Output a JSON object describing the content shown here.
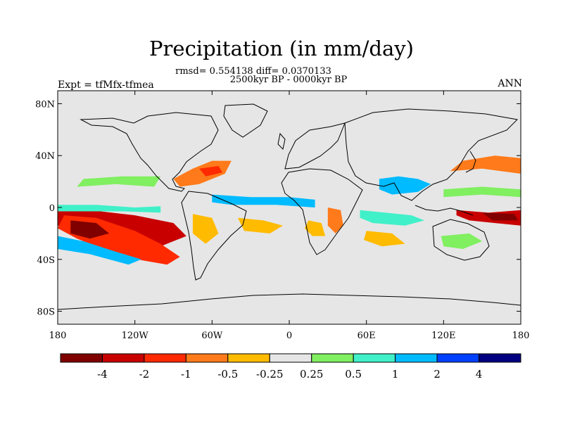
{
  "chart_data": {
    "type": "heatmap",
    "title": "Precipitation (in mm/day)",
    "subtitle_stats": "rmsd= 0.554138 diff= 0.0370133",
    "subtitle_period": "2500kyr BP - 0000kyr BP",
    "left_label": "Expt = tfMfx-tfmea",
    "right_label": "ANN",
    "xlabel": "",
    "ylabel": "",
    "x_range": [
      -180,
      180
    ],
    "y_range": [
      -90,
      90
    ],
    "x_ticks": [
      {
        "value": -180,
        "label": "180"
      },
      {
        "value": -120,
        "label": "120W"
      },
      {
        "value": -60,
        "label": "60W"
      },
      {
        "value": 0,
        "label": "0"
      },
      {
        "value": 60,
        "label": "60E"
      },
      {
        "value": 120,
        "label": "120E"
      },
      {
        "value": 180,
        "label": "180"
      }
    ],
    "y_ticks": [
      {
        "value": 80,
        "label": "80N"
      },
      {
        "value": 40,
        "label": "40N"
      },
      {
        "value": 0,
        "label": "0"
      },
      {
        "value": -40,
        "label": "40S"
      },
      {
        "value": -80,
        "label": "80S"
      }
    ],
    "colorbar": {
      "colors": [
        "#800000",
        "#c80000",
        "#ff2a00",
        "#ff7a1a",
        "#ffbb00",
        "#e6e6e6",
        "#80ef60",
        "#40f0c8",
        "#00bbff",
        "#0040ff",
        "#000080"
      ],
      "labels": [
        "-4",
        "-2",
        "-1",
        "-0.5",
        "-0.25",
        "0.25",
        "0.5",
        "1",
        "2",
        "4"
      ]
    },
    "background_color": "#e6e6e6",
    "anomaly_regions": [
      {
        "name": "tropical-pacific-dry",
        "level": 1,
        "points": [
          [
            -180,
            -2
          ],
          [
            -155,
            -2
          ],
          [
            -120,
            -6
          ],
          [
            -90,
            -12
          ],
          [
            -80,
            -22
          ],
          [
            -100,
            -30
          ],
          [
            -140,
            -28
          ],
          [
            -180,
            -14
          ]
        ]
      },
      {
        "name": "south-pacific-dry-band",
        "level": 2,
        "points": [
          [
            -175,
            -6
          ],
          [
            -150,
            -8
          ],
          [
            -120,
            -18
          ],
          [
            -100,
            -28
          ],
          [
            -85,
            -38
          ],
          [
            -95,
            -44
          ],
          [
            -130,
            -38
          ],
          [
            -165,
            -24
          ],
          [
            -180,
            -16
          ]
        ]
      },
      {
        "name": "south-pacific-core",
        "level": 0,
        "points": [
          [
            -170,
            -10
          ],
          [
            -150,
            -12
          ],
          [
            -140,
            -20
          ],
          [
            -155,
            -24
          ],
          [
            -170,
            -20
          ]
        ]
      },
      {
        "name": "south-pacific-moist-band",
        "level": 8,
        "points": [
          [
            -180,
            -22
          ],
          [
            -160,
            -26
          ],
          [
            -135,
            -34
          ],
          [
            -115,
            -40
          ],
          [
            -125,
            -44
          ],
          [
            -155,
            -36
          ],
          [
            -180,
            -32
          ]
        ]
      },
      {
        "name": "equatorial-pacific-wet",
        "level": 7,
        "points": [
          [
            -180,
            2
          ],
          [
            -150,
            2
          ],
          [
            -120,
            0
          ],
          [
            -100,
            1
          ],
          [
            -100,
            -4
          ],
          [
            -130,
            -3
          ],
          [
            -180,
            -3
          ]
        ]
      },
      {
        "name": "north-pacific-green",
        "level": 6,
        "points": [
          [
            -165,
            16
          ],
          [
            -135,
            18
          ],
          [
            -105,
            16
          ],
          [
            -100,
            24
          ],
          [
            -130,
            24
          ],
          [
            -160,
            22
          ]
        ]
      },
      {
        "name": "atlantic-itcz-wet",
        "level": 8,
        "points": [
          [
            -60,
            10
          ],
          [
            -30,
            8
          ],
          [
            0,
            8
          ],
          [
            20,
            6
          ],
          [
            20,
            0
          ],
          [
            -10,
            2
          ],
          [
            -45,
            2
          ],
          [
            -60,
            4
          ]
        ]
      },
      {
        "name": "north-atlantic-dry",
        "level": 3,
        "points": [
          [
            -90,
            22
          ],
          [
            -75,
            30
          ],
          [
            -60,
            36
          ],
          [
            -45,
            36
          ],
          [
            -50,
            26
          ],
          [
            -70,
            18
          ],
          [
            -85,
            16
          ]
        ]
      },
      {
        "name": "gulf-dry-core",
        "level": 2,
        "points": [
          [
            -70,
            30
          ],
          [
            -55,
            32
          ],
          [
            -52,
            27
          ],
          [
            -65,
            24
          ]
        ]
      },
      {
        "name": "south-atlantic-dry",
        "level": 4,
        "points": [
          [
            -40,
            -8
          ],
          [
            -20,
            -10
          ],
          [
            -5,
            -14
          ],
          [
            -15,
            -20
          ],
          [
            -35,
            -18
          ]
        ]
      },
      {
        "name": "south-america-dry",
        "level": 4,
        "points": [
          [
            -75,
            -5
          ],
          [
            -60,
            -8
          ],
          [
            -55,
            -20
          ],
          [
            -65,
            -28
          ],
          [
            -75,
            -20
          ]
        ]
      },
      {
        "name": "africa-east-dry",
        "level": 3,
        "points": [
          [
            30,
            0
          ],
          [
            40,
            -2
          ],
          [
            42,
            -14
          ],
          [
            36,
            -20
          ],
          [
            30,
            -14
          ]
        ]
      },
      {
        "name": "africa-south-dry",
        "level": 4,
        "points": [
          [
            15,
            -10
          ],
          [
            25,
            -12
          ],
          [
            28,
            -22
          ],
          [
            18,
            -22
          ],
          [
            12,
            -16
          ]
        ]
      },
      {
        "name": "indian-ocean-wet",
        "level": 7,
        "points": [
          [
            55,
            -2
          ],
          [
            75,
            -4
          ],
          [
            95,
            -6
          ],
          [
            105,
            -10
          ],
          [
            90,
            -14
          ],
          [
            65,
            -12
          ],
          [
            55,
            -8
          ]
        ]
      },
      {
        "name": "india-monsoon-wet",
        "level": 8,
        "points": [
          [
            70,
            22
          ],
          [
            85,
            24
          ],
          [
            100,
            22
          ],
          [
            110,
            18
          ],
          [
            100,
            12
          ],
          [
            80,
            10
          ],
          [
            70,
            14
          ]
        ]
      },
      {
        "name": "west-pacific-dry",
        "level": 1,
        "points": [
          [
            130,
            -2
          ],
          [
            155,
            -4
          ],
          [
            180,
            -2
          ],
          [
            180,
            -14
          ],
          [
            160,
            -12
          ],
          [
            140,
            -10
          ],
          [
            130,
            -6
          ]
        ]
      },
      {
        "name": "west-pacific-core",
        "level": 0,
        "points": [
          [
            150,
            -4
          ],
          [
            175,
            -5
          ],
          [
            178,
            -10
          ],
          [
            158,
            -10
          ]
        ]
      },
      {
        "name": "north-west-pacific-dry",
        "level": 3,
        "points": [
          [
            125,
            28
          ],
          [
            150,
            30
          ],
          [
            180,
            26
          ],
          [
            180,
            38
          ],
          [
            160,
            40
          ],
          [
            135,
            36
          ]
        ]
      },
      {
        "name": "north-west-pacific-green",
        "level": 6,
        "points": [
          [
            120,
            8
          ],
          [
            150,
            10
          ],
          [
            180,
            8
          ],
          [
            180,
            14
          ],
          [
            150,
            16
          ],
          [
            120,
            14
          ]
        ]
      },
      {
        "name": "australia-green",
        "level": 6,
        "points": [
          [
            118,
            -22
          ],
          [
            140,
            -20
          ],
          [
            150,
            -26
          ],
          [
            135,
            -32
          ],
          [
            120,
            -30
          ]
        ]
      },
      {
        "name": "south-indian-dry",
        "level": 4,
        "points": [
          [
            60,
            -18
          ],
          [
            80,
            -20
          ],
          [
            90,
            -28
          ],
          [
            72,
            -30
          ],
          [
            58,
            -25
          ]
        ]
      }
    ]
  }
}
